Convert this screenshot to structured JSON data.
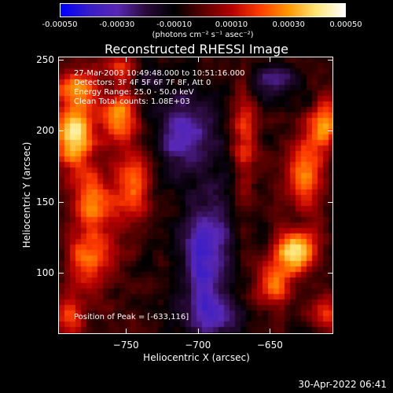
{
  "colorbar": {
    "tick_labels": [
      "-0.00050",
      "-0.00030",
      "-0.00010",
      "0.00010",
      "0.00030",
      "0.00050"
    ],
    "unit_text": "(photons cm⁻² s⁻¹ asec⁻²)",
    "colors": [
      "#0000ff",
      "#3a1ec8",
      "#5a28b4",
      "#2a0a3a",
      "#000000",
      "#5a0000",
      "#b40000",
      "#ff3c00",
      "#ff9600",
      "#ffe678",
      "#ffffff"
    ]
  },
  "chart_data": {
    "type": "heatmap",
    "title": "Reconstructed RHESSI Image",
    "xlabel": "Heliocentric X (arcsec)",
    "ylabel": "Heliocentric Y (arcsec)",
    "xlim": [
      -797,
      -606
    ],
    "ylim": [
      57,
      252
    ],
    "xticks": [
      -750,
      -700,
      -650
    ],
    "yticks": [
      100,
      150,
      200,
      250
    ],
    "colorbar_range": [
      -0.0005,
      0.0005
    ],
    "annotations": [
      "27-Mar-2003 10:49:48.000 to 10:51:16.000",
      "Detectors: 3F 4F 5F 6F 7F 8F, Att 0",
      "Energy Range: 25.0 - 50.0 keV",
      "Clean    Total counts: 1.08E+03"
    ],
    "peak_label": "Position of Peak = [-633,116]",
    "peak": [
      -633,
      116
    ],
    "sources": [
      {
        "x": -786,
        "y": 197,
        "value": 0.00048,
        "sx": 10,
        "sy": 16
      },
      {
        "x": -772,
        "y": 150,
        "value": 0.00032,
        "sx": 12,
        "sy": 14
      },
      {
        "x": -784,
        "y": 230,
        "value": 0.0003,
        "sx": 12,
        "sy": 10
      },
      {
        "x": -755,
        "y": 210,
        "value": 0.00036,
        "sx": 8,
        "sy": 14
      },
      {
        "x": -745,
        "y": 163,
        "value": 0.0003,
        "sx": 8,
        "sy": 18
      },
      {
        "x": -775,
        "y": 110,
        "value": 0.0003,
        "sx": 12,
        "sy": 14
      },
      {
        "x": -752,
        "y": 245,
        "value": 0.00026,
        "sx": 10,
        "sy": 6
      },
      {
        "x": -790,
        "y": 70,
        "value": 0.00022,
        "sx": 8,
        "sy": 12
      },
      {
        "x": -633,
        "y": 116,
        "value": 0.0005,
        "sx": 10,
        "sy": 10
      },
      {
        "x": -626,
        "y": 170,
        "value": 0.00034,
        "sx": 9,
        "sy": 20
      },
      {
        "x": -612,
        "y": 205,
        "value": 0.00036,
        "sx": 7,
        "sy": 12
      },
      {
        "x": -648,
        "y": 92,
        "value": 0.00028,
        "sx": 10,
        "sy": 12
      },
      {
        "x": -610,
        "y": 72,
        "value": 0.00022,
        "sx": 8,
        "sy": 10
      },
      {
        "x": -668,
        "y": 200,
        "value": 0.00022,
        "sx": 6,
        "sy": 30
      },
      {
        "x": -708,
        "y": 200,
        "value": -0.00026,
        "sx": 14,
        "sy": 20
      },
      {
        "x": -695,
        "y": 115,
        "value": -0.00032,
        "sx": 12,
        "sy": 28
      },
      {
        "x": -690,
        "y": 70,
        "value": -0.00024,
        "sx": 14,
        "sy": 10
      },
      {
        "x": -650,
        "y": 235,
        "value": -0.00022,
        "sx": 12,
        "sy": 8
      },
      {
        "x": -735,
        "y": 240,
        "value": -0.00016,
        "sx": 8,
        "sy": 8
      }
    ]
  },
  "timestamp": "30-Apr-2022 06:41"
}
